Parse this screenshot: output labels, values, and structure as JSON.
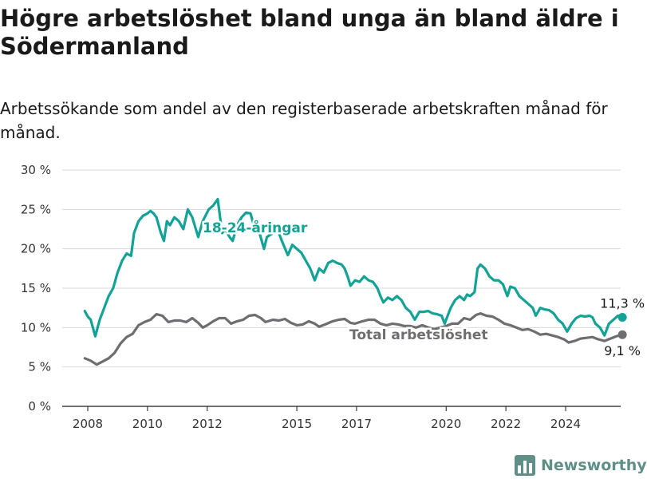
{
  "title": "Högre arbetslöshet bland unga än bland äldre i Södermanland",
  "subtitle": "Arbetssökande som andel av den registerbaserade arbetskraften månad för månad.",
  "brand": {
    "name": "Newsworthy",
    "color": "#5f8f86"
  },
  "chart_data": {
    "type": "line",
    "title": "Högre arbetslöshet bland unga än bland äldre i Södermanland",
    "subtitle": "Arbetssökande som andel av den registerbaserade arbetskraften månad för månad.",
    "y_ticks": [
      0,
      5,
      10,
      15,
      20,
      25,
      30
    ],
    "y_tick_labels": [
      "0 %",
      "5 %",
      "10 %",
      "15 %",
      "20 %",
      "25 %",
      "30 %"
    ],
    "ylim": [
      0,
      30
    ],
    "x_ticks": [
      2008,
      2010,
      2012,
      2015,
      2017,
      2020,
      2022,
      2024
    ],
    "xlim": [
      2007.5,
      2025.8
    ],
    "grid": true,
    "series": [
      {
        "name": "18-24-åringar",
        "color": "#13a396",
        "end_label": "11,3 %",
        "points": [
          [
            2007.9,
            12.1
          ],
          [
            2008.0,
            11.4
          ],
          [
            2008.1,
            11.0
          ],
          [
            2008.25,
            8.9
          ],
          [
            2008.4,
            11.0
          ],
          [
            2008.55,
            12.5
          ],
          [
            2008.7,
            14.0
          ],
          [
            2008.85,
            15.0
          ],
          [
            2009.0,
            17.0
          ],
          [
            2009.15,
            18.5
          ],
          [
            2009.3,
            19.4
          ],
          [
            2009.45,
            19.1
          ],
          [
            2009.55,
            22.0
          ],
          [
            2009.7,
            23.5
          ],
          [
            2009.85,
            24.2
          ],
          [
            2010.0,
            24.5
          ],
          [
            2010.1,
            24.8
          ],
          [
            2010.2,
            24.5
          ],
          [
            2010.3,
            24.0
          ],
          [
            2010.45,
            22.0
          ],
          [
            2010.55,
            21.0
          ],
          [
            2010.65,
            23.5
          ],
          [
            2010.75,
            23.0
          ],
          [
            2010.9,
            24.0
          ],
          [
            2011.05,
            23.5
          ],
          [
            2011.2,
            22.5
          ],
          [
            2011.35,
            25.0
          ],
          [
            2011.5,
            24.0
          ],
          [
            2011.7,
            21.5
          ],
          [
            2011.85,
            23.5
          ],
          [
            2012.05,
            25.0
          ],
          [
            2012.2,
            25.5
          ],
          [
            2012.35,
            26.3
          ],
          [
            2012.5,
            22.0
          ],
          [
            2012.6,
            22.5
          ],
          [
            2012.75,
            21.5
          ],
          [
            2012.85,
            21.0
          ],
          [
            2013.0,
            23.0
          ],
          [
            2013.15,
            24.0
          ],
          [
            2013.3,
            24.6
          ],
          [
            2013.45,
            24.5
          ],
          [
            2013.6,
            22.5
          ],
          [
            2013.75,
            22.0
          ],
          [
            2013.9,
            20.0
          ],
          [
            2014.0,
            21.5
          ],
          [
            2014.2,
            22.0
          ],
          [
            2014.35,
            22.5
          ],
          [
            2014.5,
            21.0
          ],
          [
            2014.7,
            19.2
          ],
          [
            2014.85,
            20.5
          ],
          [
            2015.0,
            20.0
          ],
          [
            2015.15,
            19.5
          ],
          [
            2015.3,
            18.5
          ],
          [
            2015.45,
            17.5
          ],
          [
            2015.6,
            16.0
          ],
          [
            2015.75,
            17.5
          ],
          [
            2015.9,
            17.0
          ],
          [
            2016.05,
            18.2
          ],
          [
            2016.2,
            18.5
          ],
          [
            2016.35,
            18.2
          ],
          [
            2016.5,
            18.0
          ],
          [
            2016.6,
            17.5
          ],
          [
            2016.7,
            16.5
          ],
          [
            2016.8,
            15.3
          ],
          [
            2016.95,
            16.0
          ],
          [
            2017.1,
            15.8
          ],
          [
            2017.25,
            16.5
          ],
          [
            2017.4,
            16.0
          ],
          [
            2017.55,
            15.8
          ],
          [
            2017.7,
            15.0
          ],
          [
            2017.8,
            14.0
          ],
          [
            2017.9,
            13.2
          ],
          [
            2018.05,
            13.8
          ],
          [
            2018.2,
            13.5
          ],
          [
            2018.35,
            14.0
          ],
          [
            2018.5,
            13.5
          ],
          [
            2018.65,
            12.5
          ],
          [
            2018.8,
            12.0
          ],
          [
            2018.95,
            11.0
          ],
          [
            2019.1,
            12.0
          ],
          [
            2019.25,
            12.0
          ],
          [
            2019.4,
            12.1
          ],
          [
            2019.55,
            11.8
          ],
          [
            2019.7,
            11.7
          ],
          [
            2019.85,
            11.5
          ],
          [
            2019.95,
            10.5
          ],
          [
            2020.05,
            11.5
          ],
          [
            2020.15,
            12.5
          ],
          [
            2020.3,
            13.5
          ],
          [
            2020.45,
            14.0
          ],
          [
            2020.6,
            13.5
          ],
          [
            2020.7,
            14.2
          ],
          [
            2020.8,
            14.0
          ],
          [
            2020.95,
            14.5
          ],
          [
            2021.05,
            17.5
          ],
          [
            2021.15,
            18.0
          ],
          [
            2021.3,
            17.5
          ],
          [
            2021.45,
            16.5
          ],
          [
            2021.6,
            16.0
          ],
          [
            2021.75,
            16.0
          ],
          [
            2021.9,
            15.5
          ],
          [
            2022.05,
            14.0
          ],
          [
            2022.15,
            15.2
          ],
          [
            2022.3,
            15.0
          ],
          [
            2022.45,
            14.0
          ],
          [
            2022.6,
            13.5
          ],
          [
            2022.75,
            13.0
          ],
          [
            2022.9,
            12.5
          ],
          [
            2023.0,
            11.5
          ],
          [
            2023.15,
            12.5
          ],
          [
            2023.3,
            12.3
          ],
          [
            2023.45,
            12.2
          ],
          [
            2023.6,
            11.8
          ],
          [
            2023.75,
            11.0
          ],
          [
            2023.9,
            10.5
          ],
          [
            2024.05,
            9.5
          ],
          [
            2024.2,
            10.5
          ],
          [
            2024.35,
            11.2
          ],
          [
            2024.5,
            11.5
          ],
          [
            2024.65,
            11.4
          ],
          [
            2024.8,
            11.5
          ],
          [
            2024.9,
            11.3
          ],
          [
            2025.0,
            10.5
          ],
          [
            2025.15,
            10.0
          ],
          [
            2025.3,
            9.0
          ],
          [
            2025.45,
            10.5
          ],
          [
            2025.6,
            11.0
          ],
          [
            2025.75,
            11.5
          ],
          [
            2025.9,
            11.3
          ]
        ]
      },
      {
        "name": "Total arbetslöshet",
        "color": "#6e6e72",
        "end_label": "9,1 %",
        "points": [
          [
            2007.9,
            6.1
          ],
          [
            2008.1,
            5.8
          ],
          [
            2008.3,
            5.3
          ],
          [
            2008.5,
            5.7
          ],
          [
            2008.7,
            6.1
          ],
          [
            2008.9,
            6.8
          ],
          [
            2009.1,
            8.0
          ],
          [
            2009.3,
            8.8
          ],
          [
            2009.5,
            9.2
          ],
          [
            2009.7,
            10.3
          ],
          [
            2009.9,
            10.7
          ],
          [
            2010.1,
            11.0
          ],
          [
            2010.3,
            11.7
          ],
          [
            2010.5,
            11.5
          ],
          [
            2010.7,
            10.7
          ],
          [
            2010.9,
            10.9
          ],
          [
            2011.1,
            10.9
          ],
          [
            2011.3,
            10.7
          ],
          [
            2011.5,
            11.2
          ],
          [
            2011.7,
            10.6
          ],
          [
            2011.85,
            10.0
          ],
          [
            2012.0,
            10.3
          ],
          [
            2012.2,
            10.8
          ],
          [
            2012.4,
            11.2
          ],
          [
            2012.6,
            11.2
          ],
          [
            2012.8,
            10.5
          ],
          [
            2013.0,
            10.8
          ],
          [
            2013.2,
            11.0
          ],
          [
            2013.4,
            11.5
          ],
          [
            2013.6,
            11.6
          ],
          [
            2013.8,
            11.2
          ],
          [
            2013.95,
            10.7
          ],
          [
            2014.2,
            11.0
          ],
          [
            2014.4,
            10.9
          ],
          [
            2014.6,
            11.1
          ],
          [
            2014.8,
            10.6
          ],
          [
            2015.0,
            10.3
          ],
          [
            2015.2,
            10.4
          ],
          [
            2015.4,
            10.8
          ],
          [
            2015.6,
            10.5
          ],
          [
            2015.75,
            10.1
          ],
          [
            2015.95,
            10.4
          ],
          [
            2016.2,
            10.8
          ],
          [
            2016.4,
            11.0
          ],
          [
            2016.6,
            11.1
          ],
          [
            2016.8,
            10.6
          ],
          [
            2016.95,
            10.5
          ],
          [
            2017.2,
            10.8
          ],
          [
            2017.4,
            11.0
          ],
          [
            2017.6,
            11.0
          ],
          [
            2017.8,
            10.5
          ],
          [
            2018.0,
            10.3
          ],
          [
            2018.2,
            10.5
          ],
          [
            2018.4,
            10.4
          ],
          [
            2018.6,
            10.2
          ],
          [
            2018.8,
            10.2
          ],
          [
            2019.0,
            10.0
          ],
          [
            2019.2,
            10.3
          ],
          [
            2019.4,
            10.0
          ],
          [
            2019.6,
            9.8
          ],
          [
            2019.8,
            10.0
          ],
          [
            2020.0,
            10.2
          ],
          [
            2020.2,
            10.5
          ],
          [
            2020.4,
            10.5
          ],
          [
            2020.6,
            11.2
          ],
          [
            2020.8,
            11.0
          ],
          [
            2021.0,
            11.6
          ],
          [
            2021.15,
            11.8
          ],
          [
            2021.35,
            11.5
          ],
          [
            2021.55,
            11.4
          ],
          [
            2021.75,
            11.0
          ],
          [
            2021.95,
            10.5
          ],
          [
            2022.15,
            10.3
          ],
          [
            2022.35,
            10.0
          ],
          [
            2022.55,
            9.7
          ],
          [
            2022.75,
            9.8
          ],
          [
            2022.95,
            9.5
          ],
          [
            2023.15,
            9.1
          ],
          [
            2023.35,
            9.2
          ],
          [
            2023.55,
            9.0
          ],
          [
            2023.75,
            8.8
          ],
          [
            2023.95,
            8.5
          ],
          [
            2024.1,
            8.1
          ],
          [
            2024.3,
            8.3
          ],
          [
            2024.5,
            8.6
          ],
          [
            2024.7,
            8.7
          ],
          [
            2024.9,
            8.8
          ],
          [
            2025.1,
            8.5
          ],
          [
            2025.3,
            8.3
          ],
          [
            2025.5,
            8.6
          ],
          [
            2025.7,
            8.9
          ],
          [
            2025.9,
            9.1
          ]
        ]
      }
    ]
  }
}
